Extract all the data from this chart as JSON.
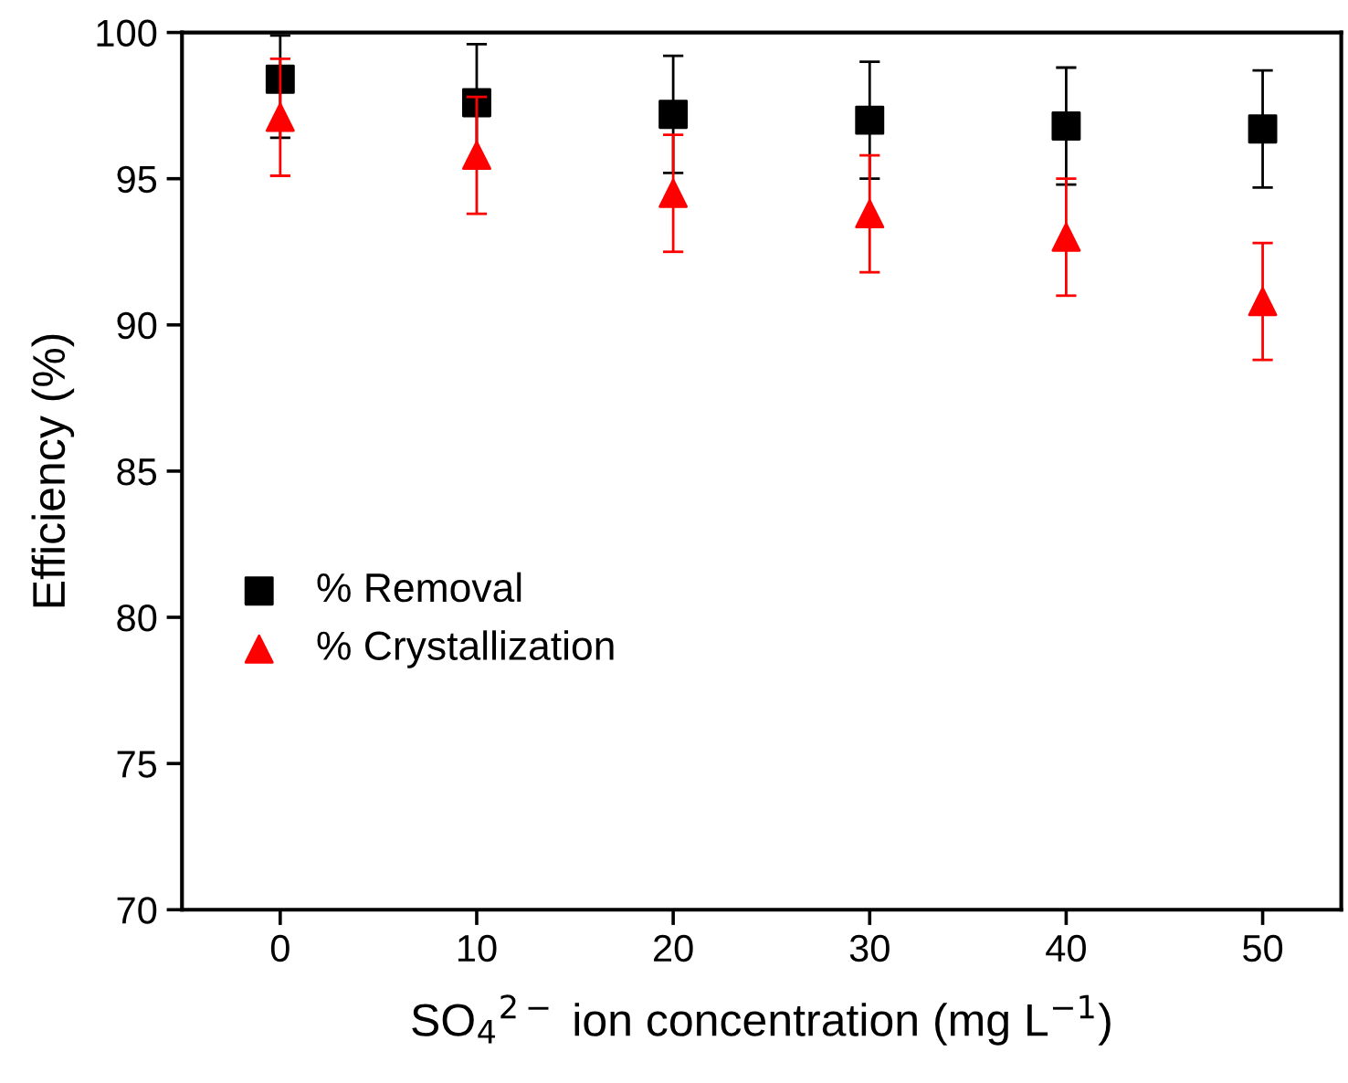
{
  "chart_data": {
    "type": "scatter",
    "xlabel": "SO$_{4}$$^{2−}$ ion concentration (mg L$^{−1}$)",
    "ylabel": "Efficiency (%)",
    "x": [
      0,
      10,
      20,
      30,
      40,
      50
    ],
    "series": [
      {
        "name": "% Removal",
        "color": "#000000",
        "marker": "square",
        "values": [
          98.4,
          97.6,
          97.2,
          97.0,
          96.8,
          96.7
        ],
        "errors": [
          [
            96.4,
            99.9
          ],
          2,
          2,
          2,
          2,
          2
        ]
      },
      {
        "name": "% Crystallization",
        "color": "#ff0000",
        "marker": "triangle",
        "values": [
          97.1,
          95.8,
          94.5,
          93.8,
          93.0,
          90.8
        ],
        "errors": [
          2,
          2,
          2,
          2,
          2,
          2
        ]
      }
    ],
    "xlim": [
      -5,
      54
    ],
    "ylim": [
      70,
      100
    ],
    "xticks": [
      0,
      10,
      20,
      30,
      40,
      50
    ],
    "yticks": [
      70,
      75,
      80,
      85,
      90,
      95,
      100
    ],
    "grid": false,
    "legend": "left"
  }
}
